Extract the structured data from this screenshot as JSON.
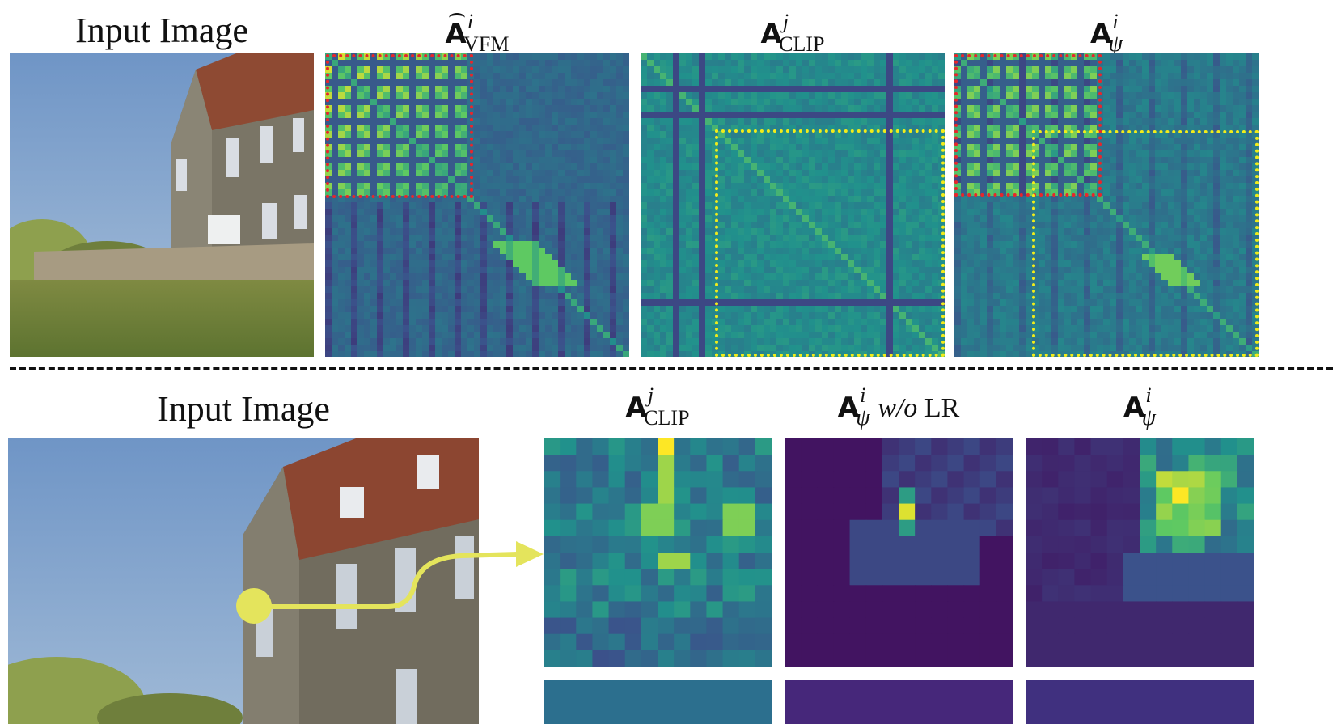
{
  "figure": {
    "top_row": {
      "input_title": "Input Image",
      "labels": [
        {
          "base": "A",
          "hat": true,
          "sup": "i",
          "sub": "VFM"
        },
        {
          "base": "A",
          "hat": false,
          "sup": "j",
          "sub": "CLIP"
        },
        {
          "base": "A",
          "hat": false,
          "sup": "i",
          "sub": "ψ"
        }
      ]
    },
    "bottom_row": {
      "input_title": "Input Image",
      "labels": [
        {
          "base": "A",
          "sup": "j",
          "sub": "CLIP",
          "rest": ""
        },
        {
          "base": "A",
          "sup": "i",
          "sub": "ψ",
          "rest_italic": "w/o",
          "rest": "LR"
        },
        {
          "base": "A",
          "sup": "i",
          "sub": "ψ",
          "rest": ""
        }
      ]
    },
    "colors": {
      "red_box": "#e8262b",
      "yellow_box": "#f2ec1a",
      "arrow": "#e4e45c",
      "viridis_low": "#440154",
      "viridis_high": "#fde725"
    }
  }
}
